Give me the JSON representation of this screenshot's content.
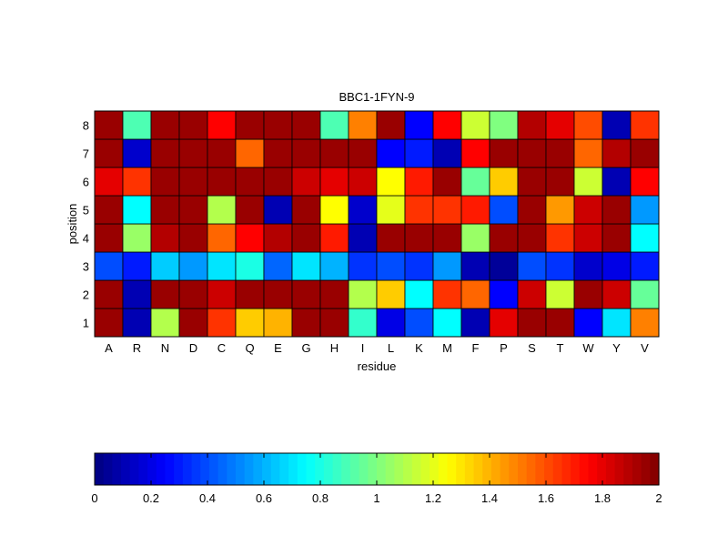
{
  "chart_data": {
    "type": "heatmap",
    "title": "BBC1-1FYN-9",
    "xlabel": "residue",
    "ylabel": "position",
    "x_categories": [
      "A",
      "R",
      "N",
      "D",
      "C",
      "Q",
      "E",
      "G",
      "H",
      "I",
      "L",
      "K",
      "M",
      "F",
      "P",
      "S",
      "T",
      "W",
      "Y",
      "V"
    ],
    "y_categories": [
      "1",
      "2",
      "3",
      "4",
      "5",
      "6",
      "7",
      "8"
    ],
    "values": [
      [
        1.95,
        0.1,
        1.1,
        1.95,
        1.65,
        1.35,
        1.4,
        1.95,
        1.95,
        0.85,
        0.2,
        0.4,
        0.75,
        0.1,
        1.8,
        1.95,
        1.95,
        0.25,
        0.7,
        1.5
      ],
      [
        1.95,
        0.1,
        1.95,
        1.95,
        1.85,
        1.95,
        1.95,
        1.95,
        1.95,
        1.1,
        1.35,
        0.75,
        1.65,
        1.55,
        0.25,
        1.85,
        1.15,
        1.95,
        1.85,
        0.95
      ],
      [
        0.4,
        0.3,
        0.65,
        0.55,
        0.7,
        0.8,
        0.45,
        0.7,
        0.6,
        0.35,
        0.4,
        0.35,
        0.55,
        0.1,
        0.05,
        0.4,
        0.35,
        0.15,
        0.2,
        0.3
      ],
      [
        1.95,
        1.05,
        1.9,
        1.95,
        1.55,
        1.75,
        1.9,
        1.95,
        1.7,
        0.1,
        1.95,
        1.95,
        1.95,
        1.05,
        1.95,
        1.95,
        1.65,
        1.85,
        1.95,
        0.75
      ],
      [
        1.95,
        0.75,
        1.95,
        1.95,
        1.1,
        1.95,
        0.1,
        1.95,
        1.25,
        0.15,
        1.2,
        1.65,
        1.65,
        1.7,
        0.4,
        1.95,
        1.45,
        1.85,
        1.95,
        0.55
      ],
      [
        1.8,
        1.65,
        1.95,
        1.95,
        1.95,
        1.95,
        1.95,
        1.85,
        1.8,
        1.85,
        1.25,
        1.7,
        1.95,
        0.95,
        1.35,
        1.95,
        1.95,
        1.15,
        0.1,
        1.75
      ],
      [
        1.95,
        0.15,
        1.95,
        1.95,
        1.95,
        1.55,
        1.95,
        1.95,
        1.95,
        1.95,
        0.25,
        0.3,
        0.1,
        1.75,
        1.95,
        1.95,
        1.95,
        1.55,
        1.9,
        1.95
      ],
      [
        1.95,
        0.9,
        1.95,
        1.95,
        1.75,
        1.95,
        1.95,
        1.95,
        0.9,
        1.5,
        1.95,
        0.25,
        1.75,
        1.15,
        1.0,
        1.9,
        1.8,
        1.6,
        0.1,
        1.65
      ]
    ],
    "colormap": "jet",
    "clim": [
      0,
      2
    ],
    "colorbar_ticks": [
      "0",
      "0.2",
      "0.4",
      "0.6",
      "0.8",
      "1",
      "1.2",
      "1.4",
      "1.6",
      "1.8",
      "2"
    ],
    "colorbar_position": "bottom",
    "grid": true
  }
}
